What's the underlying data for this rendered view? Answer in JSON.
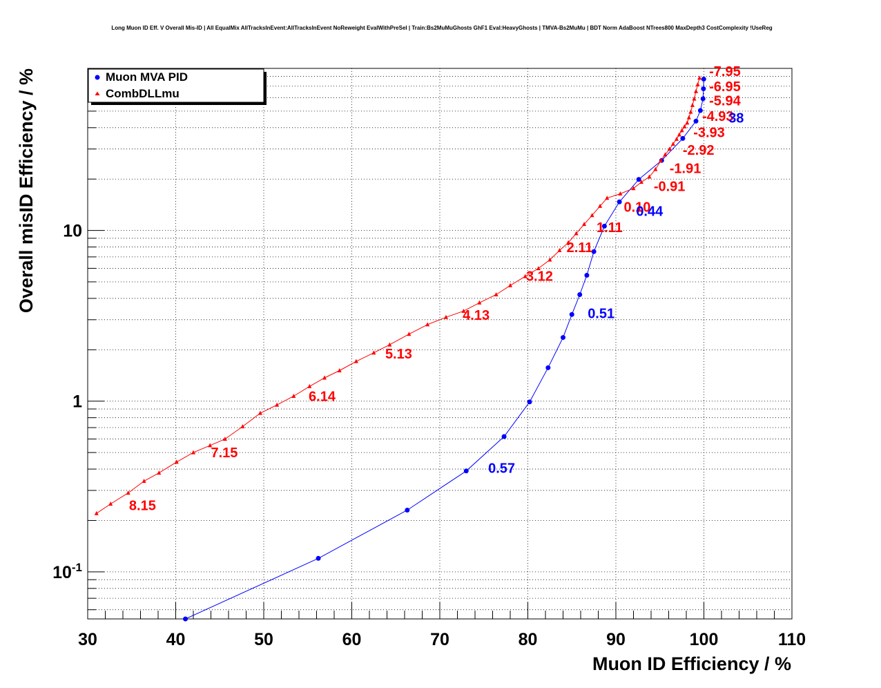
{
  "chart_data": {
    "type": "line",
    "title": "Long Muon ID Eff. V Overall Mis-ID | All EqualMix AllTracksInEvent:AllTracksInEvent NoReweight EvalWithPreSel | Train:Bs2MuMuGhosts GhF1 Eval:HeavyGhosts | TMVA-Bs2MuMu | BDT Norm AdaBoost NTrees800 MaxDepth3 CostComplexity !UseReg",
    "xlabel": "Muon ID Efficiency / %",
    "ylabel": "Overall misID Efficiency / %",
    "xlim": [
      30,
      110
    ],
    "ylim": [
      0.053,
      89
    ],
    "yscale": "log",
    "grid": true,
    "legend_position": "top-left",
    "x_ticks": [
      "30",
      "40",
      "50",
      "60",
      "70",
      "80",
      "90",
      "100",
      "110"
    ],
    "y_ticks": [
      {
        "value": 0.1,
        "base": "10",
        "exp": "-1"
      },
      {
        "value": 1,
        "base": "1",
        "exp": ""
      },
      {
        "value": 10,
        "base": "10",
        "exp": ""
      }
    ],
    "series": [
      {
        "name": "Muon MVA PID",
        "color": "#0000ff",
        "marker": "circle",
        "points": [
          [
            41.1,
            0.053
          ],
          [
            56.2,
            0.12
          ],
          [
            66.3,
            0.23
          ],
          [
            73.0,
            0.39
          ],
          [
            77.3,
            0.62
          ],
          [
            80.2,
            0.99
          ],
          [
            82.3,
            1.57
          ],
          [
            84.0,
            2.36
          ],
          [
            85.0,
            3.22
          ],
          [
            85.9,
            4.21
          ],
          [
            86.7,
            5.46
          ],
          [
            87.5,
            7.52
          ],
          [
            88.7,
            10.6
          ],
          [
            90.4,
            14.7
          ],
          [
            92.6,
            19.9
          ],
          [
            95.2,
            25.7
          ],
          [
            97.6,
            34.6
          ],
          [
            99.1,
            43.7
          ],
          [
            99.6,
            50.4
          ],
          [
            99.9,
            59.1
          ],
          [
            99.95,
            67.6
          ],
          [
            99.98,
            77.0
          ]
        ]
      },
      {
        "name": "CombDLLmu",
        "color": "#ff0000",
        "marker": "triangle",
        "points": [
          [
            31.0,
            0.22
          ],
          [
            32.6,
            0.25
          ],
          [
            34.6,
            0.29
          ],
          [
            36.4,
            0.34
          ],
          [
            38.1,
            0.38
          ],
          [
            40.1,
            0.44
          ],
          [
            42.0,
            0.5
          ],
          [
            43.9,
            0.55
          ],
          [
            45.6,
            0.6
          ],
          [
            47.6,
            0.71
          ],
          [
            49.6,
            0.85
          ],
          [
            51.5,
            0.95
          ],
          [
            53.4,
            1.07
          ],
          [
            55.2,
            1.22
          ],
          [
            56.9,
            1.37
          ],
          [
            58.6,
            1.51
          ],
          [
            60.5,
            1.71
          ],
          [
            62.5,
            1.92
          ],
          [
            64.3,
            2.14
          ],
          [
            66.5,
            2.47
          ],
          [
            68.6,
            2.81
          ],
          [
            70.7,
            3.1
          ],
          [
            72.7,
            3.37
          ],
          [
            74.5,
            3.77
          ],
          [
            76.4,
            4.21
          ],
          [
            78.0,
            4.76
          ],
          [
            79.7,
            5.38
          ],
          [
            81.2,
            5.99
          ],
          [
            82.5,
            6.73
          ],
          [
            83.6,
            7.64
          ],
          [
            84.6,
            8.49
          ],
          [
            85.5,
            9.6
          ],
          [
            86.4,
            10.87
          ],
          [
            87.3,
            12.26
          ],
          [
            88.2,
            13.89
          ],
          [
            89.0,
            15.48
          ],
          [
            90.5,
            16.4
          ],
          [
            92.0,
            17.64
          ],
          [
            92.9,
            19.2
          ],
          [
            93.8,
            20.6
          ],
          [
            94.5,
            22.8
          ],
          [
            95.1,
            25.6
          ],
          [
            95.6,
            27.8
          ],
          [
            96.1,
            30.0
          ],
          [
            96.5,
            32.1
          ],
          [
            96.9,
            34.3
          ],
          [
            97.2,
            36.4
          ],
          [
            97.5,
            38.5
          ],
          [
            97.8,
            40.6
          ],
          [
            98.1,
            42.7
          ],
          [
            98.3,
            45.8
          ],
          [
            98.5,
            49.4
          ],
          [
            98.7,
            54.1
          ],
          [
            98.9,
            59.0
          ],
          [
            99.1,
            65.3
          ],
          [
            99.3,
            71.6
          ],
          [
            99.5,
            78.2
          ]
        ]
      }
    ],
    "annotations": [
      {
        "text": "-7.95",
        "x": 100.6,
        "y": 80.3,
        "color": "#ff0000"
      },
      {
        "text": "-6.95",
        "x": 100.6,
        "y": 65.5,
        "color": "#ff0000"
      },
      {
        "text": "-5.94",
        "x": 100.6,
        "y": 54.0,
        "color": "#ff0000"
      },
      {
        "text": "-4.93",
        "x": 99.8,
        "y": 43.9,
        "color": "#ff0000"
      },
      {
        "text": "38",
        "x": 102.8,
        "y": 42.8,
        "color": "#0000ff"
      },
      {
        "text": "-3.93",
        "x": 98.8,
        "y": 35.2,
        "color": "#ff0000"
      },
      {
        "text": "-2.92",
        "x": 97.6,
        "y": 27.8,
        "color": "#ff0000"
      },
      {
        "text": "-1.91",
        "x": 96.1,
        "y": 21.7,
        "color": "#ff0000"
      },
      {
        "text": "-0.91",
        "x": 94.3,
        "y": 17.0,
        "color": "#ff0000"
      },
      {
        "text": "0.10",
        "x": 90.9,
        "y": 12.9,
        "color": "#ff0000"
      },
      {
        "text": "0.44",
        "x": 92.3,
        "y": 12.2,
        "color": "#0000ff"
      },
      {
        "text": "1.11",
        "x": 87.8,
        "y": 9.77,
        "color": "#ff0000"
      },
      {
        "text": "2.11",
        "x": 84.4,
        "y": 7.45,
        "color": "#ff0000"
      },
      {
        "text": "3.12",
        "x": 79.8,
        "y": 5.08,
        "color": "#ff0000"
      },
      {
        "text": "0.51",
        "x": 86.8,
        "y": 3.07,
        "color": "#0000ff"
      },
      {
        "text": "4.13",
        "x": 72.6,
        "y": 3.0,
        "color": "#ff0000"
      },
      {
        "text": "5.13",
        "x": 63.8,
        "y": 1.78,
        "color": "#ff0000"
      },
      {
        "text": "6.14",
        "x": 55.1,
        "y": 1.0,
        "color": "#ff0000"
      },
      {
        "text": "7.15",
        "x": 44.0,
        "y": 0.47,
        "color": "#ff0000"
      },
      {
        "text": "0.57",
        "x": 75.5,
        "y": 0.38,
        "color": "#0000ff"
      },
      {
        "text": "8.15",
        "x": 34.7,
        "y": 0.23,
        "color": "#ff0000"
      }
    ]
  }
}
